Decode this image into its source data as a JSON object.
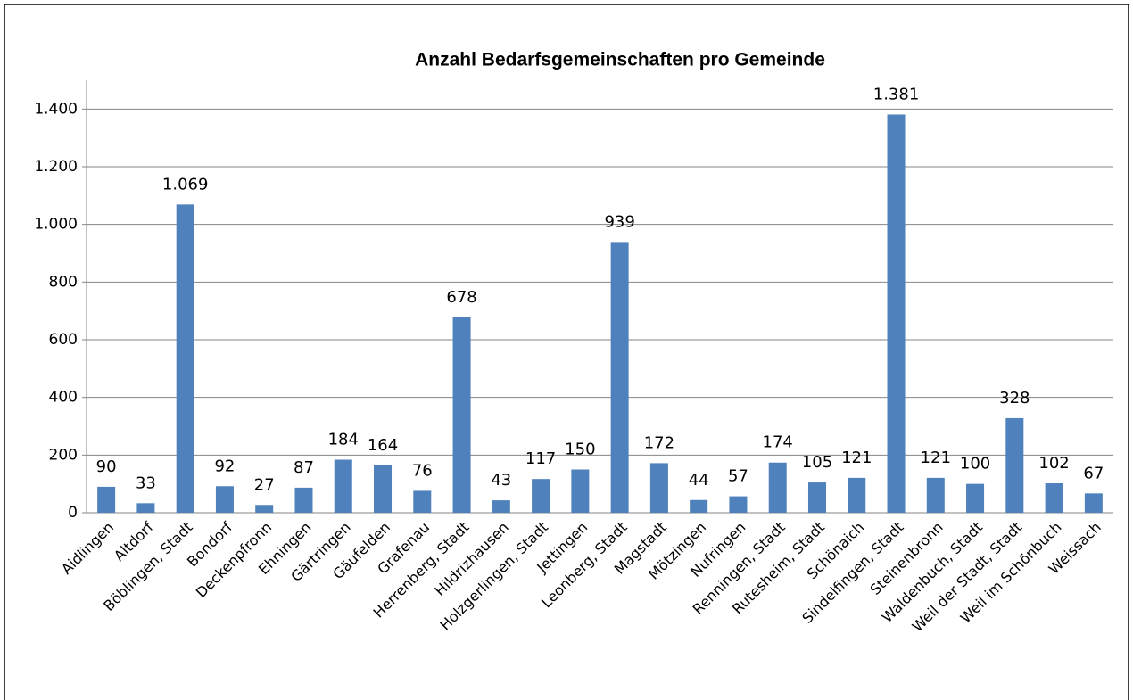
{
  "chart_data": {
    "type": "bar",
    "title": "Anzahl Bedarfsgemeinschaften pro Gemeinde",
    "categories": [
      "Aidlingen",
      "Altdorf",
      "Böblingen, Stadt",
      "Bondorf",
      "Deckenpfronn",
      "Ehningen",
      "Gärtringen",
      "Gäufelden",
      "Grafenau",
      "Herrenberg, Stadt",
      "Hildrizhausen",
      "Holzgerlingen, Stadt",
      "Jettingen",
      "Leonberg, Stadt",
      "Magstadt",
      "Mötzingen",
      "Nufringen",
      "Renningen, Stadt",
      "Rutesheim, Stadt",
      "Schönaich",
      "Sindelfingen, Stadt",
      "Steinenbronn",
      "Waldenbuch, Stadt",
      "Weil der Stadt, Stadt",
      "Weil im Schönbuch",
      "Weissach"
    ],
    "values": [
      90,
      33,
      1069,
      92,
      27,
      87,
      184,
      164,
      76,
      678,
      43,
      117,
      150,
      939,
      172,
      44,
      57,
      174,
      105,
      121,
      1381,
      121,
      100,
      328,
      102,
      67
    ],
    "value_labels": [
      "90",
      "33",
      "1.069",
      "92",
      "27",
      "87",
      "184",
      "164",
      "76",
      "678",
      "43",
      "117",
      "150",
      "939",
      "172",
      "44",
      "57",
      "174",
      "105",
      "121",
      "1.381",
      "121",
      "100",
      "328",
      "102",
      "67"
    ],
    "color": "#4f81bd",
    "ylim": [
      0,
      1500
    ],
    "yticks": [
      0,
      200,
      400,
      600,
      800,
      {
        "value": 1000,
        "label": "1.000"
      },
      {
        "value": 1200,
        "label": "1.200"
      },
      {
        "value": 1400,
        "label": "1.400"
      }
    ],
    "grid": true
  }
}
